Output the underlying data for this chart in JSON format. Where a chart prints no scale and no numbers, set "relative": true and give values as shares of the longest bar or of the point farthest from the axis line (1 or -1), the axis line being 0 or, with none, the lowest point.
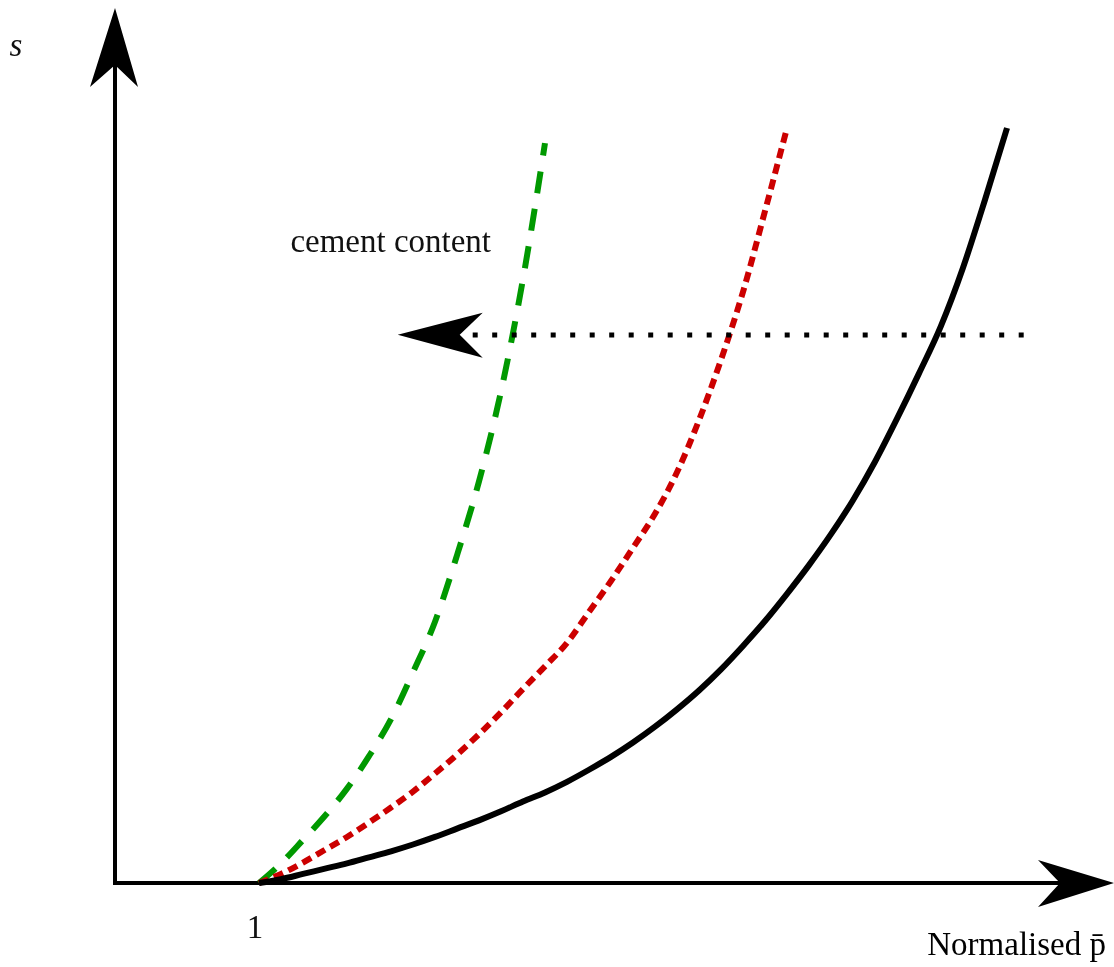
{
  "chart_data": {
    "type": "line",
    "relative": true,
    "xlabel": "Normalised p̄",
    "annotations": [
      "cement content",
      "1",
      "s"
    ],
    "categories": [
      null,
      null,
      null,
      null,
      null,
      null,
      null,
      null,
      null,
      null,
      null,
      null,
      null,
      null,
      null,
      null,
      null,
      null,
      null,
      null,
      null,
      null,
      null,
      null,
      null,
      null,
      null,
      null,
      null,
      null,
      null,
      null,
      null,
      null,
      null
    ],
    "series": [
      {
        "color": "#009900",
        "line_style": "dashed",
        "values": [
          0,
          0.026,
          0.057,
          0.089,
          0.125,
          0.168,
          0.217,
          0.279,
          0.346,
          0.434,
          0.532,
          0.651,
          0.8,
          0.98,
          null,
          null,
          null,
          null,
          null,
          null,
          null,
          null,
          null,
          null,
          null,
          null,
          null,
          null,
          null,
          null,
          null,
          null,
          null,
          null,
          null
        ]
      },
      {
        "color": "#cc0000",
        "line_style": "dotted",
        "values": [
          0,
          0.012,
          0.027,
          0.044,
          0.061,
          0.08,
          0.1,
          0.121,
          0.145,
          0.17,
          0.197,
          0.226,
          0.257,
          0.287,
          0.318,
          0.359,
          0.4,
          0.444,
          0.489,
          0.544,
          0.613,
          0.693,
          0.783,
          0.89,
          1.0,
          null,
          null,
          null,
          null,
          null,
          null,
          null,
          null,
          null,
          null
        ]
      },
      {
        "color": "#000000",
        "line_style": "solid",
        "values": [
          0,
          0.005,
          0.012,
          0.019,
          0.026,
          0.034,
          0.042,
          0.051,
          0.061,
          0.072,
          0.083,
          0.095,
          0.108,
          0.12,
          0.134,
          0.15,
          0.167,
          0.186,
          0.207,
          0.23,
          0.255,
          0.283,
          0.314,
          0.347,
          0.383,
          0.421,
          0.462,
          0.507,
          0.558,
          0.615,
          0.675,
          0.738,
          0.815,
          0.905,
          1.0
        ]
      }
    ]
  }
}
